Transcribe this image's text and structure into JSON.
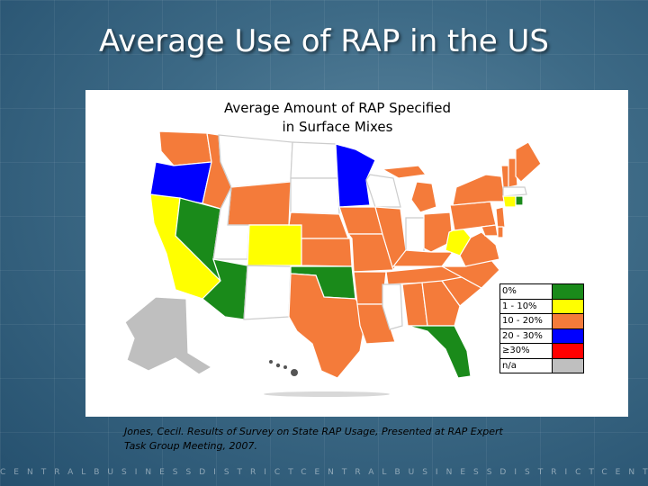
{
  "slide": {
    "title": "Average Use of RAP in the US",
    "map_title_line1": "Average Amount of RAP Specified",
    "map_title_line2": "in Surface Mixes",
    "citation": "Jones, Cecil.  Results of Survey on State RAP Usage, Presented at RAP Expert Task Group Meeting, 2007.",
    "footer": "CENTRALBUSINESSDISTRICTCENTRALBUSINESSDISTRICTCENTRALBUSINESSDISTRICTCENTRE"
  },
  "legend": [
    {
      "label": "0%",
      "color": "#1a8a1a"
    },
    {
      "label": "1 - 10%",
      "color": "#ffff00"
    },
    {
      "label": "10 - 20%",
      "color": "#f47b3a"
    },
    {
      "label": "20 - 30%",
      "color": "#0000ff"
    },
    {
      "label": "≥30%",
      "color": "#ff0000"
    },
    {
      "label": "n/a",
      "color": "#bfbfbf"
    }
  ],
  "colors": {
    "zero": "#1a8a1a",
    "low": "#ffff00",
    "mid": "#f47b3a",
    "high": "#0000ff",
    "top": "#ff0000",
    "na": "#bfbfbf",
    "none": "#ffffff"
  }
}
